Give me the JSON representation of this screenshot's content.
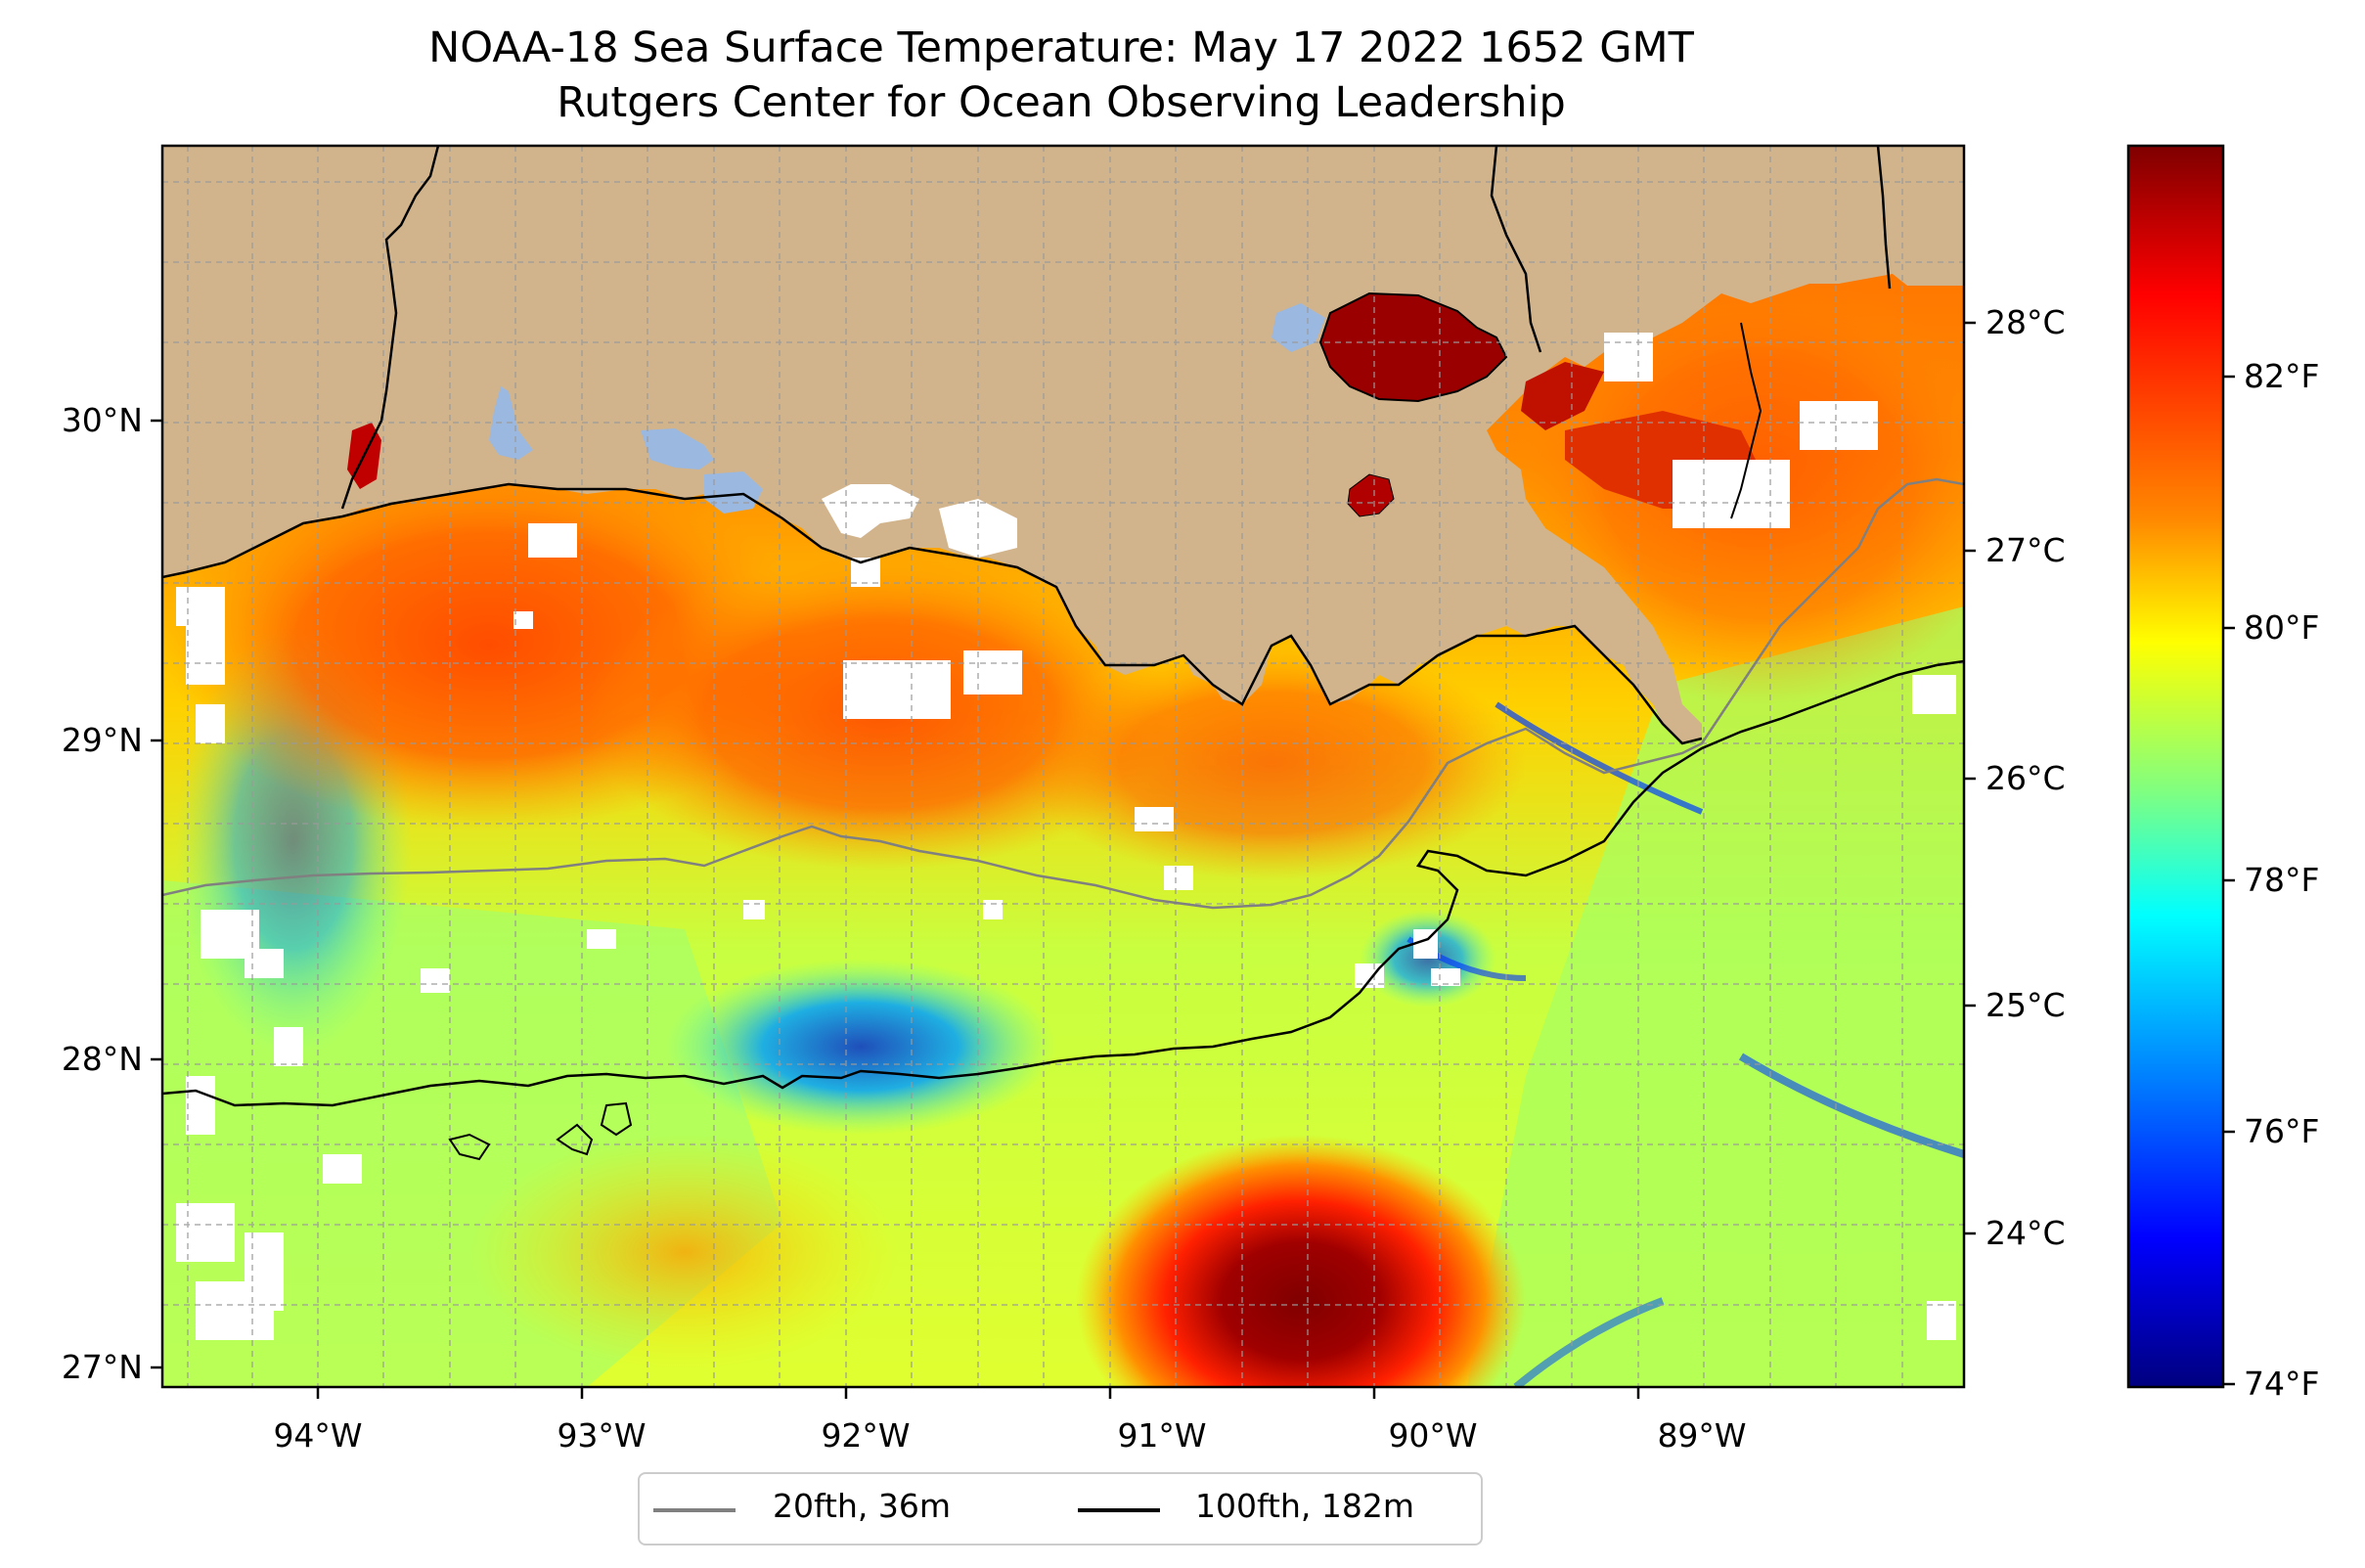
{
  "figure": {
    "title_line1": "NOAA-18 Sea Surface Temperature: May 17 2022 1652 GMT",
    "title_line2": "Rutgers Center for Ocean Observing Leadership"
  },
  "map": {
    "lat_labels": [
      "30°N",
      "29°N",
      "28°N",
      "27°N"
    ],
    "lon_labels": [
      "94°W",
      "93°W",
      "92°W",
      "91°W",
      "90°W",
      "89°W"
    ],
    "colors": {
      "land": "#d2b48c",
      "lakes": "#9ab8e0",
      "cloud_mask": "#ffffff",
      "isobath_20fth": "#808080",
      "isobath_100fth": "#000000",
      "gridlines": "#9a9a9a"
    }
  },
  "colorbar": {
    "celsius_labels": [
      "28°C",
      "27°C",
      "26°C",
      "25°C",
      "24°C"
    ],
    "fahrenheit_labels": [
      "82°F",
      "80°F",
      "78°F",
      "76°F",
      "74°F"
    ],
    "colormap": [
      "#7f0000",
      "#ff0000",
      "#ff8000",
      "#ffff00",
      "#80ff80",
      "#00ffff",
      "#0080ff",
      "#0000ff",
      "#00007f"
    ]
  },
  "legend": {
    "items": [
      {
        "label": "20fth, 36m",
        "color": "#808080"
      },
      {
        "label": "100fth, 182m",
        "color": "#000000"
      }
    ]
  }
}
